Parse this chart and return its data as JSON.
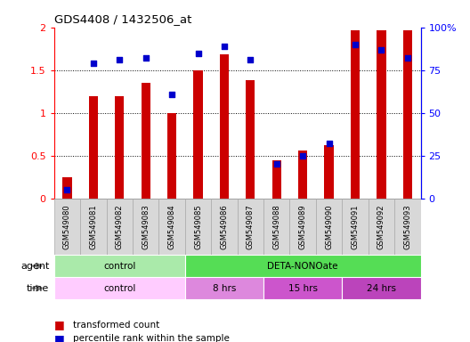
{
  "title": "GDS4408 / 1432506_at",
  "samples": [
    "GSM549080",
    "GSM549081",
    "GSM549082",
    "GSM549083",
    "GSM549084",
    "GSM549085",
    "GSM549086",
    "GSM549087",
    "GSM549088",
    "GSM549089",
    "GSM549090",
    "GSM549091",
    "GSM549092",
    "GSM549093"
  ],
  "transformed_count": [
    0.25,
    1.2,
    1.2,
    1.35,
    1.0,
    1.5,
    1.68,
    1.38,
    0.45,
    0.56,
    0.62,
    1.97,
    1.97,
    1.97
  ],
  "percentile_rank": [
    5,
    79,
    81,
    82,
    61,
    85,
    89,
    81,
    20,
    25,
    32,
    90,
    87,
    82
  ],
  "bar_color": "#cc0000",
  "dot_color": "#0000cc",
  "ylim_left": [
    0,
    2
  ],
  "ylim_right": [
    0,
    100
  ],
  "yticks_left": [
    0,
    0.5,
    1.0,
    1.5,
    2.0
  ],
  "yticks_right": [
    0,
    25,
    50,
    75,
    100
  ],
  "ytick_labels_left": [
    "0",
    "0.5",
    "1",
    "1.5",
    "2"
  ],
  "ytick_labels_right": [
    "0",
    "25",
    "50",
    "75",
    "100%"
  ],
  "agent_groups": [
    {
      "label": "control",
      "start": 0,
      "end": 4,
      "color": "#aaeaaa"
    },
    {
      "label": "DETA-NONOate",
      "start": 5,
      "end": 13,
      "color": "#55dd55"
    }
  ],
  "time_groups": [
    {
      "label": "control",
      "start": 0,
      "end": 4,
      "color": "#ffccff"
    },
    {
      "label": "8 hrs",
      "start": 5,
      "end": 7,
      "color": "#ee88ee"
    },
    {
      "label": "15 hrs",
      "start": 8,
      "end": 10,
      "color": "#dd55dd"
    },
    {
      "label": "24 hrs",
      "start": 11,
      "end": 13,
      "color": "#cc44cc"
    }
  ],
  "legend_bar_label": "transformed count",
  "legend_dot_label": "percentile rank within the sample",
  "bg_color": "#ffffff",
  "bar_width": 0.35,
  "n_samples": 14
}
